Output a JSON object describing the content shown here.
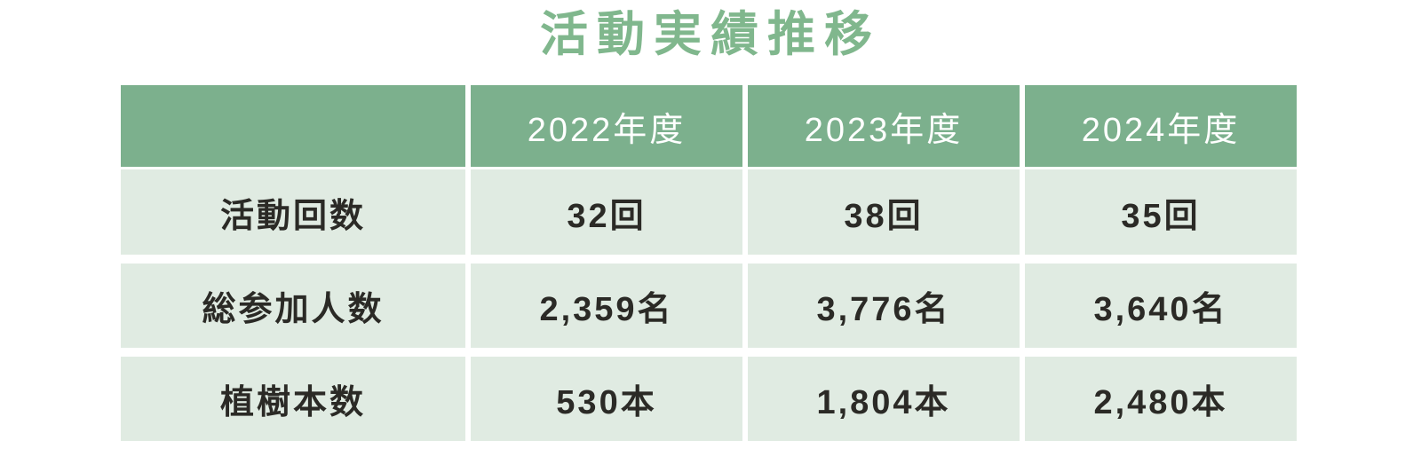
{
  "title": "活動実績推移",
  "colors": {
    "title_green": "#80b78d",
    "header_green": "#7cb08d",
    "cell_background": "#e0ebe2",
    "body_text": "#2b2a26",
    "header_text": "#ffffff"
  },
  "table": {
    "columns": [
      "",
      "2022年度",
      "2023年度",
      "2024年度"
    ],
    "rows": [
      {
        "label": "活動回数",
        "values": [
          "32回",
          "38回",
          "35回"
        ]
      },
      {
        "label": "総参加人数",
        "values": [
          "2,359名",
          "3,776名",
          "3,640名"
        ]
      },
      {
        "label": "植樹本数",
        "values": [
          "530本",
          "1,804本",
          "2,480本"
        ]
      }
    ]
  },
  "chart_data": {
    "type": "table",
    "title": "活動実績推移",
    "categories": [
      "2022年度",
      "2023年度",
      "2024年度"
    ],
    "series": [
      {
        "name": "活動回数",
        "unit": "回",
        "values": [
          32,
          38,
          35
        ]
      },
      {
        "name": "総参加人数",
        "unit": "名",
        "values": [
          2359,
          3776,
          3640
        ]
      },
      {
        "name": "植樹本数",
        "unit": "本",
        "values": [
          530,
          1804,
          2480
        ]
      }
    ]
  }
}
